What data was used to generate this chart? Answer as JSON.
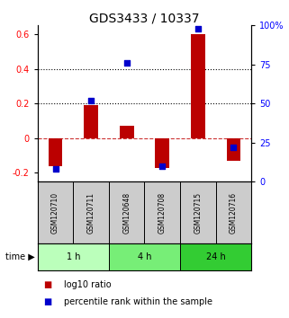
{
  "title": "GDS3433 / 10337",
  "samples": [
    "GSM120710",
    "GSM120711",
    "GSM120648",
    "GSM120708",
    "GSM120715",
    "GSM120716"
  ],
  "log10_ratio": [
    -0.16,
    0.19,
    0.07,
    -0.17,
    0.6,
    -0.13
  ],
  "percentile_rank": [
    8,
    52,
    76,
    10,
    98,
    22
  ],
  "time_groups": [
    {
      "label": "1 h",
      "start": 0,
      "end": 1,
      "color": "#bbffbb"
    },
    {
      "label": "4 h",
      "start": 2,
      "end": 3,
      "color": "#77ee77"
    },
    {
      "label": "24 h",
      "start": 4,
      "end": 5,
      "color": "#33cc33"
    }
  ],
  "left_ylim": [
    -0.25,
    0.65
  ],
  "right_ylim": [
    0,
    100
  ],
  "left_yticks": [
    -0.2,
    0.0,
    0.2,
    0.4,
    0.6
  ],
  "right_yticks": [
    0,
    25,
    50,
    75,
    100
  ],
  "right_yticklabels": [
    "0",
    "25",
    "50",
    "75",
    "100%"
  ],
  "dotted_lines": [
    0.2,
    0.4
  ],
  "dashed_line_y": 0.0,
  "bar_color": "#bb0000",
  "dot_color": "#0000cc",
  "sample_box_color": "#cccccc",
  "sample_box_edge": "#000000",
  "title_fontsize": 10,
  "tick_fontsize": 7,
  "label_fontsize": 6,
  "legend_fontsize": 7,
  "bar_width": 0.4
}
